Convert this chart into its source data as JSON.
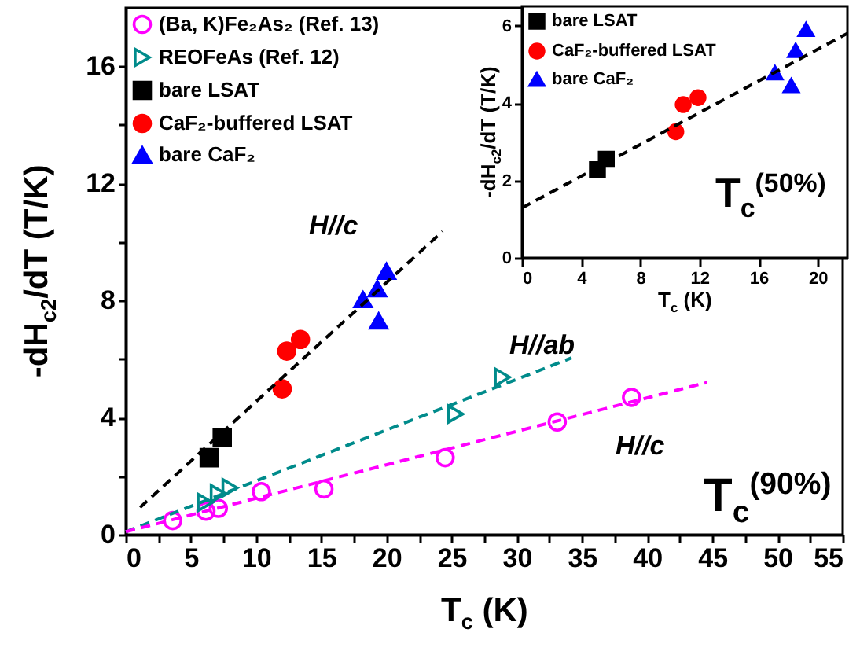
{
  "chart_data": [
    {
      "type": "scatter",
      "xlabel": "T$_{c}$ (K)",
      "ylabel": "-dH$_{c2}$/dT (T/K)",
      "xlim": [
        0,
        55
      ],
      "ylim": [
        0,
        18
      ],
      "xticks": [
        0,
        {
          "value": 2.5,
          "label": null
        },
        5,
        {
          "value": 7.5,
          "label": null
        },
        10,
        {
          "value": 12.5,
          "label": null
        },
        15,
        {
          "value": 17.5,
          "label": null
        },
        20,
        {
          "value": 22.5,
          "label": null
        },
        25,
        {
          "value": 27.5,
          "label": null
        },
        30,
        {
          "value": 32.5,
          "label": null
        },
        35,
        {
          "value": 37.5,
          "label": null
        },
        40,
        {
          "value": 42.5,
          "label": null
        },
        45,
        {
          "value": 47.5,
          "label": null
        },
        50,
        {
          "value": 52.5,
          "label": null
        },
        55
      ],
      "yticks": [
        0,
        {
          "value": 2,
          "label": null
        },
        4,
        {
          "value": 6,
          "label": null
        },
        8,
        {
          "value": 10,
          "label": null
        },
        12,
        {
          "value": 14,
          "label": null
        },
        16
      ],
      "grid": false,
      "legend": "top left",
      "annotations": [
        "H//c",
        "H//ab",
        "H//c",
        "T$_{c}$$^{(90%)}$"
      ],
      "series": [
        {
          "name": "(Ba, K)Fe₂As₂ (Ref. 13)",
          "color": "#ff00ff",
          "marker": "circle",
          "x": [
            3.6,
            6.15,
            7.1,
            10.4,
            15.2,
            24.5,
            33.1,
            38.8
          ],
          "values": [
            0.48,
            0.8,
            0.9,
            1.47,
            1.56,
            2.63,
            3.85,
            4.69
          ]
        },
        {
          "name": "REOFeAs (Ref. 12)",
          "color": "#008b8b",
          "marker": "triangle-right",
          "x": [
            6.1,
            7.1,
            8.0,
            25.3,
            28.9
          ],
          "values": [
            1.1,
            1.4,
            1.6,
            4.12,
            5.38
          ]
        },
        {
          "name": "bare LSAT",
          "color": "#000000",
          "marker": "square",
          "x": [
            6.4,
            7.4
          ],
          "values": [
            2.63,
            3.32
          ]
        },
        {
          "name": "CaF₂-buffered LSAT",
          "color": "#ff0000",
          "marker": "circle",
          "x": [
            12.0,
            12.35,
            13.4
          ],
          "values": [
            4.98,
            6.27,
            6.67
          ]
        },
        {
          "name": "bare CaF₂",
          "color": "#0000ff",
          "marker": "triangle",
          "x": [
            18.2,
            19.3,
            19.4,
            20.0
          ],
          "values": [
            8.03,
            8.4,
            7.3,
            9.0
          ]
        },
        {
          "type": "line",
          "color": "#000000",
          "line_style": "dashed",
          "x": [
            1.1,
            24.3
          ],
          "values": [
            0.93,
            10.36
          ]
        },
        {
          "type": "line",
          "color": "#008b8b",
          "line_style": "dashed",
          "x": [
            0,
            34.2
          ],
          "values": [
            0.1,
            6.04
          ]
        },
        {
          "type": "line",
          "color": "#ff00ff",
          "line_style": "dashed",
          "x": [
            0,
            44.6
          ],
          "values": [
            0.1,
            5.2
          ]
        }
      ]
    },
    {
      "type": "scatter",
      "xlabel": "T$_{c}$ (K)",
      "ylabel": "-dH$_{c2}$/dT (T/K)",
      "xlim": [
        0,
        22
      ],
      "ylim": [
        0,
        6.5
      ],
      "xticks": [
        0,
        4,
        8,
        12,
        16,
        20
      ],
      "yticks": [
        0,
        2,
        4,
        6
      ],
      "grid": false,
      "legend": "top left",
      "annotations": [
        "T$_{c}$$^{(50%)}$"
      ],
      "series": [
        {
          "name": "bare LSAT",
          "color": "#000000",
          "marker": "square",
          "x": [
            5.1,
            5.7
          ],
          "values": [
            2.28,
            2.55
          ]
        },
        {
          "name": "CaF₂-buffered LSAT",
          "color": "#ff0000",
          "marker": "circle",
          "x": [
            10.4,
            10.9,
            11.9
          ],
          "values": [
            3.26,
            3.96,
            4.14
          ]
        },
        {
          "name": "bare CaF₂",
          "color": "#0000ff",
          "marker": "triangle",
          "x": [
            17.1,
            18.2,
            18.5,
            19.2
          ],
          "values": [
            4.78,
            4.45,
            5.36,
            5.9
          ]
        },
        {
          "type": "line",
          "color": "#000000",
          "line_style": "dashed",
          "x": [
            0,
            22
          ],
          "values": [
            1.29,
            5.8
          ]
        }
      ]
    }
  ]
}
